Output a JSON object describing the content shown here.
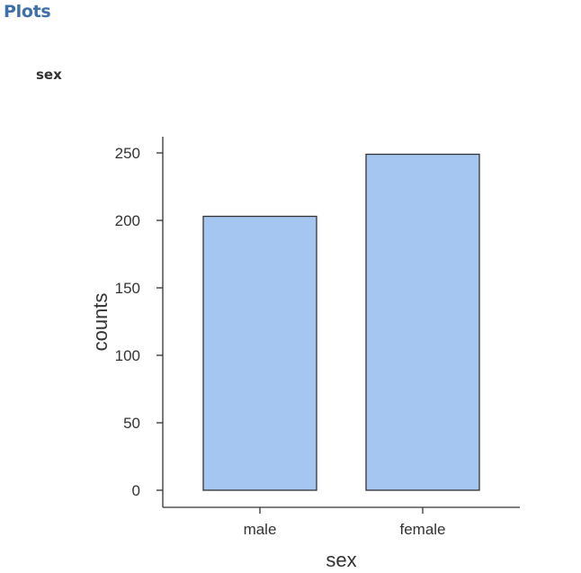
{
  "panel": {
    "heading": "Plots",
    "plot_title": "sex"
  },
  "chart_data": {
    "type": "bar",
    "categories": [
      "male",
      "female"
    ],
    "values": [
      203,
      249
    ],
    "xlabel": "sex",
    "ylabel": "counts",
    "ylim": [
      0,
      250
    ],
    "yticks": [
      0,
      50,
      100,
      150,
      200,
      250
    ],
    "grid": false,
    "legend": "none",
    "bar_color": "#a6c6f2",
    "bar_edge_color": "#333333",
    "axis_color": "#333333"
  }
}
